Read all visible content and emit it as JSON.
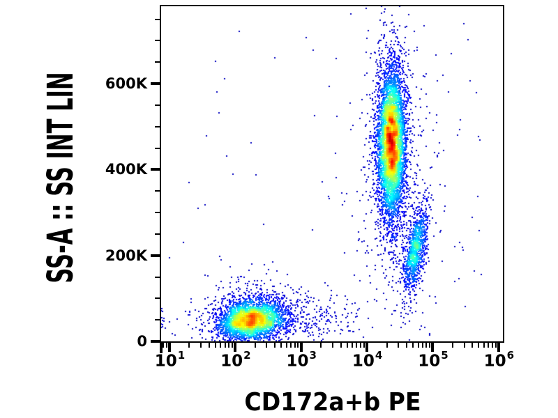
{
  "figure": {
    "background_color": "#ffffff",
    "frame_color": "#000000",
    "text_color": "#000000"
  },
  "chart_data": {
    "type": "scatter",
    "subtype": "flow-cytometry-pseudocolor-density-dot-plot",
    "title": "",
    "xlabel": "CD172a+b PE",
    "ylabel": "SS-A :: SS INT LIN",
    "grid": false,
    "legend": "none",
    "dot_size_px": 2,
    "density_colormap": {
      "name": "jet-pseudocolor",
      "low_to_high": [
        "#000080",
        "#0040ff",
        "#00c8ff",
        "#24ffd3",
        "#80ff80",
        "#d3ff24",
        "#ffb000",
        "#ff4000",
        "#d00000"
      ]
    },
    "x_axis": {
      "scale": "log10",
      "range_log10": [
        0.873,
        6.065
      ],
      "major_ticks": [
        {
          "log10": 1,
          "label_base": "10",
          "label_exp": "1"
        },
        {
          "log10": 2,
          "label_base": "10",
          "label_exp": "2"
        },
        {
          "log10": 3,
          "label_base": "10",
          "label_exp": "3"
        },
        {
          "log10": 4,
          "label_base": "10",
          "label_exp": "4"
        },
        {
          "log10": 5,
          "label_base": "10",
          "label_exp": "5"
        },
        {
          "log10": 6,
          "label_base": "10",
          "label_exp": "6"
        }
      ],
      "minor_tick_mantissas": [
        2,
        3,
        4,
        5,
        6,
        7,
        8,
        9
      ]
    },
    "y_axis": {
      "scale": "linear",
      "range": [
        0,
        780000
      ],
      "major_ticks": [
        {
          "value": 0,
          "label": "0"
        },
        {
          "value": 200000,
          "label": "200K"
        },
        {
          "value": 400000,
          "label": "400K"
        },
        {
          "value": 600000,
          "label": "600K"
        }
      ],
      "minor_tick_step": 50000,
      "minor_tick_max": 750000
    },
    "populations": [
      {
        "name": "lymphocytes-debris",
        "n": 3100,
        "center_logx": 2.24,
        "center_y": 50000,
        "sigma_logx": 0.25,
        "sigma_y": 23000,
        "rho": 0.15
      },
      {
        "name": "lymphocytes-halo",
        "n": 430,
        "center_logx": 2.34,
        "center_y": 60000,
        "sigma_logx": 0.45,
        "sigma_y": 42000,
        "rho": 0
      },
      {
        "name": "low-ss-right-tail",
        "n": 300,
        "center_logx": 3.05,
        "center_y": 52000,
        "sigma_logx": 0.5,
        "sigma_y": 30000,
        "rho": 0
      },
      {
        "name": "granulocytes",
        "n": 5600,
        "center_logx": 4.38,
        "center_y": 462000,
        "sigma_logx": 0.105,
        "sigma_y": 90000,
        "rho": 0.05
      },
      {
        "name": "granulocytes-halo",
        "n": 460,
        "center_logx": 4.4,
        "center_y": 420000,
        "sigma_logx": 0.28,
        "sigma_y": 165000,
        "rho": 0
      },
      {
        "name": "monocytes",
        "n": 950,
        "center_logx": 4.75,
        "center_y": 211000,
        "sigma_logx": 0.085,
        "sigma_y": 48000,
        "rho": 0.6
      },
      {
        "name": "monocytes-halo",
        "n": 150,
        "center_logx": 4.73,
        "center_y": 218000,
        "sigma_logx": 0.16,
        "sigma_y": 85000,
        "rho": 0.4
      },
      {
        "name": "left-axis-edge-pile",
        "n": 18,
        "center_logx": 0.9,
        "center_y": 50000,
        "sigma_logx": 0.03,
        "sigma_y": 22000,
        "rho": 0
      },
      {
        "name": "background-sparse-left",
        "n": 40,
        "uniform": true,
        "logx_range": [
          1.0,
          3.6
        ],
        "y_range": [
          10000,
          760000
        ]
      },
      {
        "name": "background-sparse-right",
        "n": 80,
        "uniform": true,
        "logx_range": [
          3.6,
          5.75
        ],
        "y_range": [
          10000,
          760000
        ]
      }
    ]
  }
}
